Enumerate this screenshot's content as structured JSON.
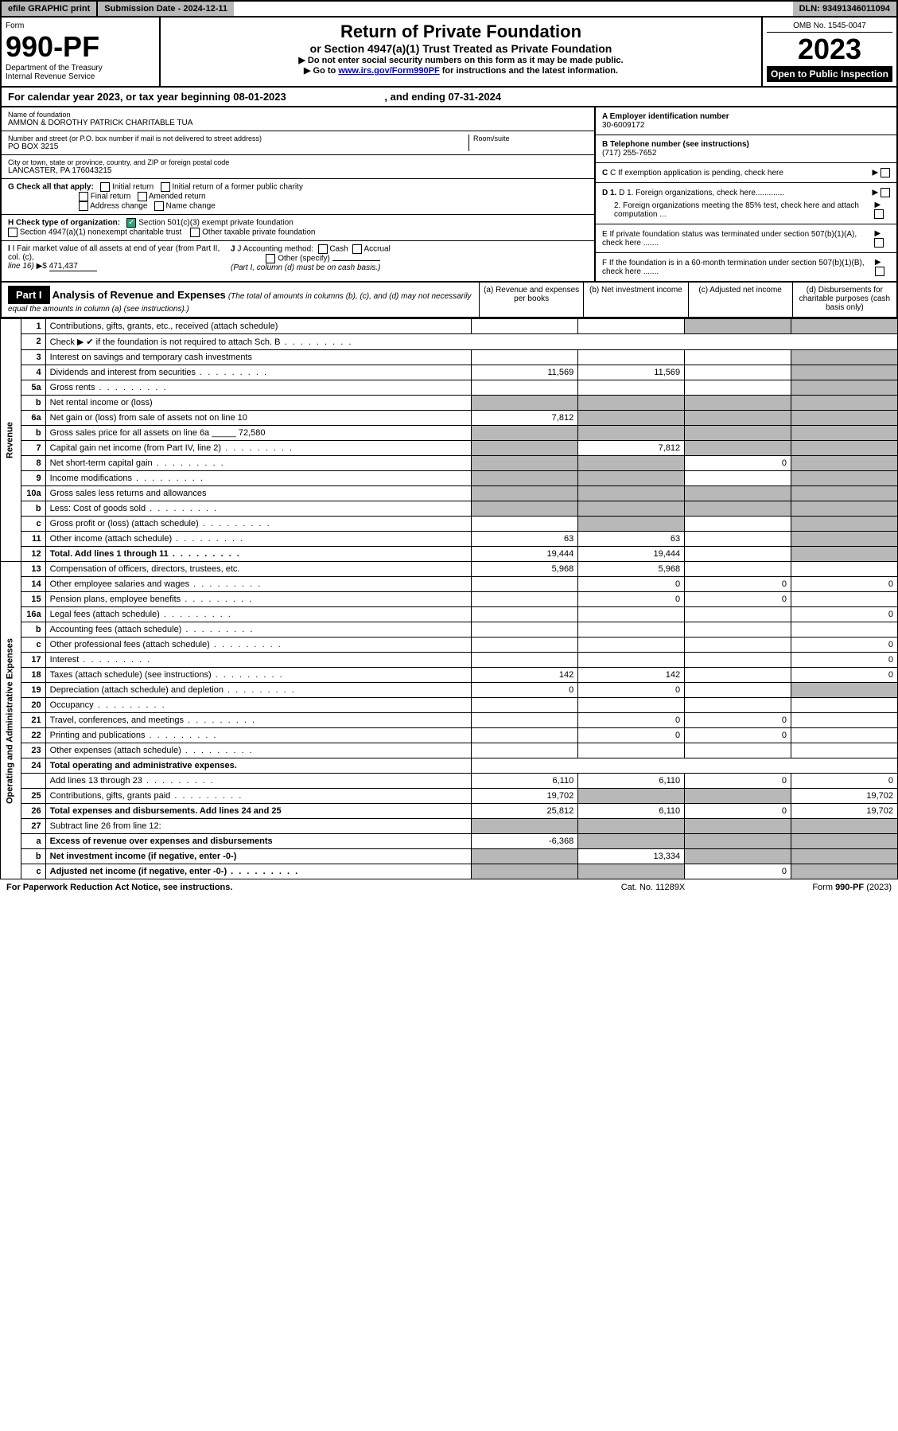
{
  "top": {
    "efile": "efile GRAPHIC print",
    "subdate_label": "Submission Date - ",
    "subdate": "2024-12-11",
    "dln": "DLN: 93491346011094"
  },
  "header": {
    "form_label": "Form",
    "form_num": "990-PF",
    "dept1": "Department of the Treasury",
    "dept2": "Internal Revenue Service",
    "title": "Return of Private Foundation",
    "subtitle": "or Section 4947(a)(1) Trust Treated as Private Foundation",
    "instr1": "▶ Do not enter social security numbers on this form as it may be made public.",
    "instr2a": "▶ Go to ",
    "instr2b": "www.irs.gov/Form990PF",
    "instr2c": " for instructions and the latest information.",
    "omb": "OMB No. 1545-0047",
    "year": "2023",
    "open": "Open to Public Inspection"
  },
  "calendar": {
    "text1": "For calendar year 2023, or tax year beginning ",
    "begin": "08-01-2023",
    "text2": " , and ending ",
    "end": "07-31-2024"
  },
  "foundation": {
    "name_label": "Name of foundation",
    "name": "AMMON & DOROTHY PATRICK CHARITABLE TUA",
    "addr_label": "Number and street (or P.O. box number if mail is not delivered to street address)",
    "addr": "PO BOX 3215",
    "room_label": "Room/suite",
    "city_label": "City or town, state or province, country, and ZIP or foreign postal code",
    "city": "LANCASTER, PA  176043215",
    "ein_label": "A Employer identification number",
    "ein": "30-6009172",
    "phone_label": "B Telephone number (see instructions)",
    "phone": "(717) 255-7652",
    "c_label": "C If exemption application is pending, check here",
    "d1_label": "D 1. Foreign organizations, check here.............",
    "d2_label": "2. Foreign organizations meeting the 85% test, check here and attach computation ...",
    "e_label": "E  If private foundation status was terminated under section 507(b)(1)(A), check here .......",
    "f_label": "F  If the foundation is in a 60-month termination under section 507(b)(1)(B), check here .......",
    "g_label": "G Check all that apply:",
    "g_opts": [
      "Initial return",
      "Initial return of a former public charity",
      "Final return",
      "Amended return",
      "Address change",
      "Name change"
    ],
    "h_label": "H Check type of organization:",
    "h_opts": [
      "Section 501(c)(3) exempt private foundation",
      "Section 4947(a)(1) nonexempt charitable trust",
      "Other taxable private foundation"
    ],
    "i_label": "I Fair market value of all assets at end of year (from Part II, col. (c), ",
    "i_line": "line 16)",
    "i_val": "471,437",
    "j_label": "J Accounting method:",
    "j_opts": [
      "Cash",
      "Accrual",
      "Other (specify)"
    ],
    "j_note": "(Part I, column (d) must be on cash basis.)"
  },
  "part1": {
    "label": "Part I",
    "title": "Analysis of Revenue and Expenses",
    "subtitle": " (The total of amounts in columns (b), (c), and (d) may not necessarily equal the amounts in column (a) (see instructions).)",
    "col_a": "(a)   Revenue and expenses per books",
    "col_b": "(b)  Net investment income",
    "col_c": "(c)  Adjusted net income",
    "col_d": "(d)  Disbursements for charitable purposes (cash basis only)"
  },
  "sidelabels": {
    "revenue": "Revenue",
    "expenses": "Operating and Administrative Expenses"
  },
  "lines": [
    {
      "num": "1",
      "desc": "Contributions, gifts, grants, etc., received (attach schedule)",
      "a": "",
      "b": "",
      "c_grey": true,
      "d_grey": true
    },
    {
      "num": "2",
      "desc": "Check ▶ ✔ if the foundation is not required to attach Sch. B",
      "dots": true,
      "span": true
    },
    {
      "num": "3",
      "desc": "Interest on savings and temporary cash investments",
      "a": "",
      "b": "",
      "c": "",
      "d_grey": true
    },
    {
      "num": "4",
      "desc": "Dividends and interest from securities",
      "dots": true,
      "a": "11,569",
      "b": "11,569",
      "c": "",
      "d_grey": true
    },
    {
      "num": "5a",
      "desc": "Gross rents",
      "dots": true,
      "a": "",
      "b": "",
      "c": "",
      "d_grey": true
    },
    {
      "num": "b",
      "desc": "Net rental income or (loss)",
      "inline_box": true,
      "grey_abcd": true
    },
    {
      "num": "6a",
      "desc": "Net gain or (loss) from sale of assets not on line 10",
      "a": "7,812",
      "b_grey": true,
      "c_grey": true,
      "d_grey": true
    },
    {
      "num": "b",
      "desc": "Gross sales price for all assets on line 6a",
      "inline_val": "72,580",
      "grey_abcd": true
    },
    {
      "num": "7",
      "desc": "Capital gain net income (from Part IV, line 2)",
      "dots": true,
      "a_grey": true,
      "b": "7,812",
      "c_grey": true,
      "d_grey": true
    },
    {
      "num": "8",
      "desc": "Net short-term capital gain",
      "dots": true,
      "a_grey": true,
      "b_grey": true,
      "c": "0",
      "d_grey": true
    },
    {
      "num": "9",
      "desc": "Income modifications",
      "dots": true,
      "a_grey": true,
      "b_grey": true,
      "c": "",
      "d_grey": true
    },
    {
      "num": "10a",
      "desc": "Gross sales less returns and allowances",
      "inline_box": true,
      "grey_abcd": true
    },
    {
      "num": "b",
      "desc": "Less: Cost of goods sold",
      "dots": true,
      "inline_box": true,
      "grey_abcd": true
    },
    {
      "num": "c",
      "desc": "Gross profit or (loss) (attach schedule)",
      "dots": true,
      "a": "",
      "b_grey": true,
      "c": "",
      "d_grey": true
    },
    {
      "num": "11",
      "desc": "Other income (attach schedule)",
      "dots": true,
      "a": "63",
      "b": "63",
      "c": "",
      "d_grey": true
    },
    {
      "num": "12",
      "desc": "Total. Add lines 1 through 11",
      "dots": true,
      "bold": true,
      "a": "19,444",
      "b": "19,444",
      "c": "",
      "d_grey": true
    },
    {
      "num": "13",
      "desc": "Compensation of officers, directors, trustees, etc.",
      "a": "5,968",
      "b": "5,968",
      "c": "",
      "d": ""
    },
    {
      "num": "14",
      "desc": "Other employee salaries and wages",
      "dots": true,
      "a": "",
      "b": "0",
      "c": "0",
      "d": "0"
    },
    {
      "num": "15",
      "desc": "Pension plans, employee benefits",
      "dots": true,
      "a": "",
      "b": "0",
      "c": "0",
      "d": ""
    },
    {
      "num": "16a",
      "desc": "Legal fees (attach schedule)",
      "dots": true,
      "a": "",
      "b": "",
      "c": "",
      "d": "0"
    },
    {
      "num": "b",
      "desc": "Accounting fees (attach schedule)",
      "dots": true,
      "a": "",
      "b": "",
      "c": "",
      "d": ""
    },
    {
      "num": "c",
      "desc": "Other professional fees (attach schedule)",
      "dots": true,
      "a": "",
      "b": "",
      "c": "",
      "d": "0"
    },
    {
      "num": "17",
      "desc": "Interest",
      "dots": true,
      "a": "",
      "b": "",
      "c": "",
      "d": "0"
    },
    {
      "num": "18",
      "desc": "Taxes (attach schedule) (see instructions)",
      "dots": true,
      "a": "142",
      "b": "142",
      "c": "",
      "d": "0"
    },
    {
      "num": "19",
      "desc": "Depreciation (attach schedule) and depletion",
      "dots": true,
      "a": "0",
      "b": "0",
      "c": "",
      "d_grey": true
    },
    {
      "num": "20",
      "desc": "Occupancy",
      "dots": true,
      "a": "",
      "b": "",
      "c": "",
      "d": ""
    },
    {
      "num": "21",
      "desc": "Travel, conferences, and meetings",
      "dots": true,
      "a": "",
      "b": "0",
      "c": "0",
      "d": ""
    },
    {
      "num": "22",
      "desc": "Printing and publications",
      "dots": true,
      "a": "",
      "b": "0",
      "c": "0",
      "d": ""
    },
    {
      "num": "23",
      "desc": "Other expenses (attach schedule)",
      "dots": true,
      "a": "",
      "b": "",
      "c": "",
      "d": ""
    },
    {
      "num": "24",
      "desc": "Total operating and administrative expenses.",
      "bold": true,
      "nocols": true
    },
    {
      "num": "",
      "desc": "Add lines 13 through 23",
      "dots": true,
      "a": "6,110",
      "b": "6,110",
      "c": "0",
      "d": "0"
    },
    {
      "num": "25",
      "desc": "Contributions, gifts, grants paid",
      "dots": true,
      "a": "19,702",
      "b_grey": true,
      "c_grey": true,
      "d": "19,702"
    },
    {
      "num": "26",
      "desc": "Total expenses and disbursements. Add lines 24 and 25",
      "bold": true,
      "a": "25,812",
      "b": "6,110",
      "c": "0",
      "d": "19,702"
    },
    {
      "num": "27",
      "desc": "Subtract line 26 from line 12:",
      "grey_abcd": true
    },
    {
      "num": "a",
      "desc": "Excess of revenue over expenses and disbursements",
      "bold": true,
      "a": "-6,368",
      "b_grey": true,
      "c_grey": true,
      "d_grey": true
    },
    {
      "num": "b",
      "desc": "Net investment income (if negative, enter -0-)",
      "bold": true,
      "a_grey": true,
      "b": "13,334",
      "c_grey": true,
      "d_grey": true
    },
    {
      "num": "c",
      "desc": "Adjusted net income (if negative, enter -0-)",
      "bold": true,
      "dots": true,
      "a_grey": true,
      "b_grey": true,
      "c": "0",
      "d_grey": true
    }
  ],
  "footer": {
    "left": "For Paperwork Reduction Act Notice, see instructions.",
    "center": "Cat. No. 11289X",
    "right": "Form 990-PF (2023)"
  }
}
